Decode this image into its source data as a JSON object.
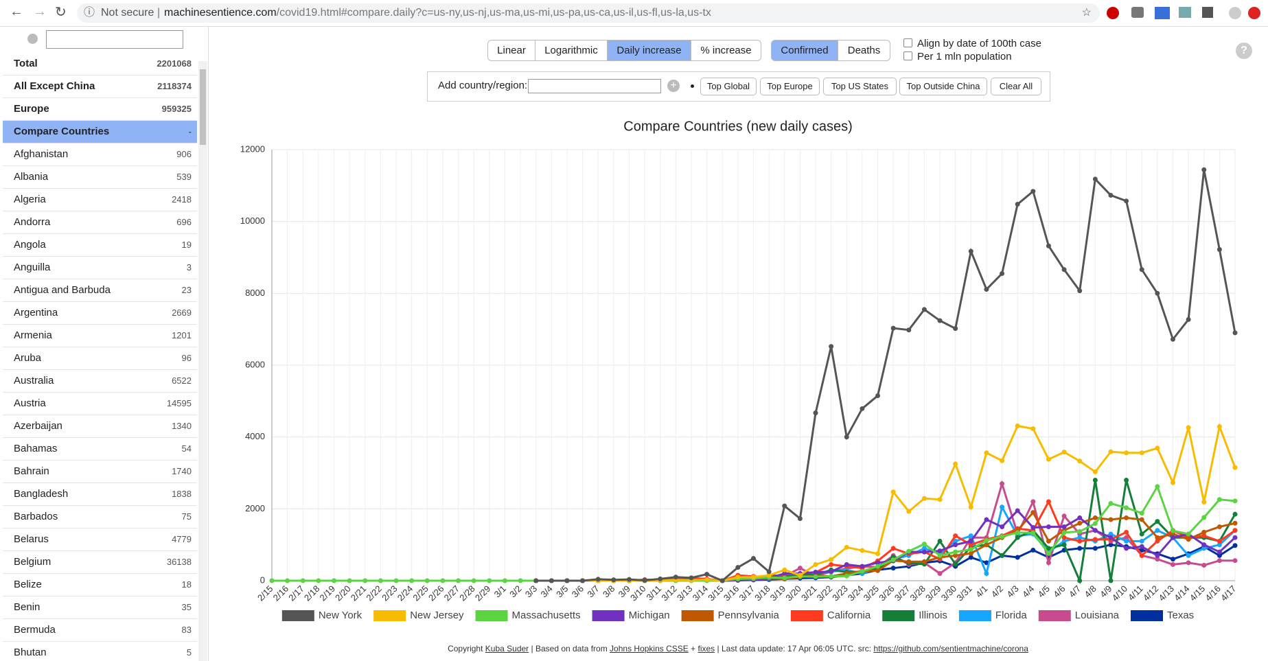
{
  "browser": {
    "security": "Not secure",
    "url_host": "machinesentience.com",
    "url_path": "/covid19.html#compare.daily?c=us-ny,us-nj,us-ma,us-mi,us-pa,us-ca,us-il,us-fl,us-la,us-tx"
  },
  "sidebar": {
    "selected": 3,
    "items": [
      {
        "name": "Total",
        "count": 2201068
      },
      {
        "name": "All Except China",
        "count": 2118374
      },
      {
        "name": "Europe",
        "count": 959325
      },
      {
        "name": "Compare Countries",
        "count": "-"
      },
      {
        "name": "Afghanistan",
        "count": 906
      },
      {
        "name": "Albania",
        "count": 539
      },
      {
        "name": "Algeria",
        "count": 2418
      },
      {
        "name": "Andorra",
        "count": 696
      },
      {
        "name": "Angola",
        "count": 19
      },
      {
        "name": "Anguilla",
        "count": 3
      },
      {
        "name": "Antigua and Barbuda",
        "count": 23
      },
      {
        "name": "Argentina",
        "count": 2669
      },
      {
        "name": "Armenia",
        "count": 1201
      },
      {
        "name": "Aruba",
        "count": 96
      },
      {
        "name": "Australia",
        "count": 6522
      },
      {
        "name": "Austria",
        "count": 14595
      },
      {
        "name": "Azerbaijan",
        "count": 1340
      },
      {
        "name": "Bahamas",
        "count": 54
      },
      {
        "name": "Bahrain",
        "count": 1740
      },
      {
        "name": "Bangladesh",
        "count": 1838
      },
      {
        "name": "Barbados",
        "count": 75
      },
      {
        "name": "Belarus",
        "count": 4779
      },
      {
        "name": "Belgium",
        "count": 36138
      },
      {
        "name": "Belize",
        "count": 18
      },
      {
        "name": "Benin",
        "count": 35
      },
      {
        "name": "Bermuda",
        "count": 83
      },
      {
        "name": "Bhutan",
        "count": 5
      }
    ]
  },
  "controls": {
    "scale_buttons": [
      "Linear",
      "Logarithmic",
      "Daily increase",
      "% increase"
    ],
    "scale_active": 2,
    "type_buttons": [
      "Confirmed",
      "Deaths"
    ],
    "type_active": 0,
    "checkboxes": [
      "Align by date of 100th case",
      "Per 1 mln population"
    ],
    "add_label": "Add country/region:",
    "quick_buttons": [
      "Top Global",
      "Top Europe",
      "Top US States",
      "Top Outside China",
      "Clear All"
    ]
  },
  "help": "?",
  "chart_data": {
    "type": "line",
    "title": "Compare Countries (new daily cases)",
    "categories": [
      "2/15",
      "2/16",
      "2/17",
      "2/18",
      "2/19",
      "2/20",
      "2/21",
      "2/22",
      "2/23",
      "2/24",
      "2/25",
      "2/26",
      "2/27",
      "2/28",
      "2/29",
      "3/1",
      "3/2",
      "3/3",
      "3/4",
      "3/5",
      "3/6",
      "3/7",
      "3/8",
      "3/9",
      "3/10",
      "3/11",
      "3/12",
      "3/13",
      "3/14",
      "3/15",
      "3/16",
      "3/17",
      "3/18",
      "3/19",
      "3/20",
      "3/21",
      "3/22",
      "3/23",
      "3/24",
      "3/25",
      "3/26",
      "3/27",
      "3/28",
      "3/29",
      "3/30",
      "3/31",
      "4/1",
      "4/2",
      "4/3",
      "4/4",
      "4/5",
      "4/6",
      "4/7",
      "4/8",
      "4/9",
      "4/10",
      "4/11",
      "4/12",
      "4/13",
      "4/14",
      "4/15",
      "4/16",
      "4/17"
    ],
    "ylim": [
      0,
      12000
    ],
    "yticks": [
      0,
      2000,
      4000,
      6000,
      8000,
      10000,
      12000
    ],
    "grid": true,
    "series": [
      {
        "name": "New York",
        "color": "#555555",
        "values": [
          null,
          null,
          null,
          null,
          null,
          null,
          null,
          null,
          null,
          null,
          null,
          null,
          null,
          null,
          null,
          null,
          null,
          0,
          0,
          0,
          0,
          40,
          25,
          35,
          10,
          50,
          100,
          80,
          180,
          0,
          370,
          620,
          250,
          2080,
          1730,
          4670,
          6520,
          4000,
          4790,
          5150,
          7030,
          6980,
          7550,
          7240,
          7020,
          9170,
          8110,
          8550,
          10480,
          10840,
          9320,
          8660,
          8070,
          11180,
          10730,
          10570,
          8660,
          8000,
          6720,
          7270,
          11440,
          9220,
          6900
        ]
      },
      {
        "name": "New Jersey",
        "color": "#f7bc00",
        "values": [
          null,
          null,
          null,
          null,
          null,
          null,
          null,
          null,
          null,
          null,
          null,
          null,
          null,
          null,
          null,
          null,
          null,
          0,
          0,
          0,
          0,
          0,
          1,
          2,
          5,
          8,
          20,
          15,
          30,
          0,
          100,
          100,
          150,
          300,
          150,
          450,
          590,
          930,
          840,
          750,
          2470,
          1930,
          2290,
          2260,
          3250,
          2050,
          3560,
          3340,
          4310,
          4230,
          3380,
          3580,
          3330,
          3030,
          3590,
          3560,
          3560,
          3690,
          2730,
          4260,
          2190,
          4290,
          3150
        ]
      },
      {
        "name": "Massachusetts",
        "color": "#5bd441",
        "values": [
          0,
          0,
          0,
          0,
          0,
          0,
          0,
          0,
          0,
          0,
          0,
          0,
          0,
          0,
          0,
          0,
          0,
          0,
          0,
          0,
          0,
          0,
          0,
          0,
          0,
          0,
          0,
          0,
          0,
          0,
          50,
          60,
          90,
          80,
          120,
          110,
          120,
          130,
          260,
          400,
          580,
          820,
          1020,
          700,
          800,
          870,
          1120,
          1230,
          1340,
          1330,
          760,
          1340,
          1370,
          1590,
          2150,
          2030,
          1880,
          2620,
          1390,
          1300,
          1760,
          2260,
          2220
        ]
      },
      {
        "name": "Michigan",
        "color": "#7030c0",
        "values": [
          null,
          null,
          null,
          null,
          null,
          null,
          null,
          null,
          null,
          null,
          null,
          null,
          null,
          null,
          null,
          null,
          null,
          0,
          0,
          0,
          0,
          0,
          0,
          0,
          0,
          2,
          10,
          20,
          20,
          0,
          20,
          25,
          70,
          200,
          200,
          240,
          250,
          450,
          400,
          500,
          550,
          800,
          800,
          830,
          1000,
          1100,
          1700,
          1500,
          1950,
          1480,
          1500,
          1500,
          1750,
          1400,
          1200,
          900,
          950,
          700,
          1200,
          1300,
          1000,
          800,
          1200
        ]
      },
      {
        "name": "Pennsylvania",
        "color": "#c05800",
        "values": [
          null,
          null,
          null,
          null,
          null,
          null,
          null,
          null,
          null,
          null,
          null,
          null,
          null,
          null,
          null,
          null,
          null,
          0,
          0,
          0,
          0,
          0,
          0,
          0,
          2,
          3,
          6,
          10,
          15,
          0,
          20,
          30,
          60,
          50,
          100,
          140,
          120,
          200,
          270,
          280,
          560,
          530,
          530,
          650,
          700,
          760,
          1000,
          1200,
          1400,
          1900,
          1100,
          1400,
          1600,
          1750,
          1700,
          1750,
          1700,
          1200,
          1300,
          1150,
          1350,
          1500,
          1600
        ]
      },
      {
        "name": "California",
        "color": "#ff3a1f",
        "values": [
          null,
          null,
          null,
          null,
          null,
          null,
          null,
          null,
          null,
          null,
          null,
          null,
          null,
          null,
          null,
          null,
          null,
          0,
          0,
          0,
          0,
          0,
          0,
          0,
          30,
          20,
          50,
          70,
          50,
          0,
          150,
          120,
          100,
          170,
          200,
          230,
          450,
          400,
          350,
          550,
          900,
          750,
          800,
          600,
          1250,
          1000,
          1150,
          1250,
          1450,
          1400,
          2200,
          1200,
          1100,
          1150,
          1150,
          1350,
          700,
          1100,
          1400,
          1200,
          1250,
          1100,
          1400
        ]
      },
      {
        "name": "Illinois",
        "color": "#157f3a",
        "values": [
          null,
          null,
          null,
          null,
          null,
          null,
          null,
          null,
          null,
          null,
          null,
          null,
          null,
          null,
          null,
          null,
          null,
          0,
          0,
          0,
          0,
          0,
          0,
          0,
          1,
          6,
          7,
          14,
          18,
          0,
          13,
          50,
          150,
          130,
          160,
          160,
          300,
          240,
          250,
          330,
          660,
          490,
          460,
          1100,
          460,
          940,
          1000,
          700,
          1200,
          1400,
          900,
          1000,
          0,
          2800,
          0,
          2800,
          1300,
          1650,
          1200,
          1200,
          1200,
          1100,
          1850
        ]
      },
      {
        "name": "Florida",
        "color": "#16a6ff",
        "values": [
          null,
          null,
          null,
          null,
          null,
          null,
          null,
          null,
          null,
          null,
          null,
          null,
          null,
          null,
          null,
          null,
          null,
          0,
          0,
          0,
          0,
          0,
          0,
          0,
          5,
          5,
          10,
          20,
          20,
          0,
          40,
          30,
          50,
          100,
          150,
          200,
          250,
          300,
          200,
          350,
          600,
          700,
          900,
          750,
          1100,
          1250,
          200,
          2050,
          1250,
          1300,
          800,
          1100,
          1200,
          1100,
          1300,
          1100,
          1100,
          1400,
          1200,
          700,
          900,
          1000,
          1400
        ]
      },
      {
        "name": "Louisiana",
        "color": "#c84b8f",
        "values": [
          null,
          null,
          null,
          null,
          null,
          null,
          null,
          null,
          null,
          null,
          null,
          null,
          null,
          null,
          null,
          null,
          null,
          0,
          0,
          0,
          0,
          0,
          0,
          0,
          0,
          6,
          20,
          16,
          40,
          0,
          50,
          60,
          80,
          120,
          350,
          130,
          250,
          340,
          400,
          380,
          700,
          450,
          500,
          200,
          500,
          1200,
          1200,
          2700,
          1300,
          2200,
          500,
          1800,
          1300,
          1400,
          1100,
          1200,
          700,
          600,
          450,
          500,
          430,
          560,
          560
        ]
      },
      {
        "name": "Texas",
        "color": "#0030a0",
        "values": [
          null,
          null,
          null,
          null,
          null,
          null,
          null,
          null,
          null,
          null,
          null,
          null,
          null,
          null,
          null,
          null,
          null,
          0,
          0,
          0,
          0,
          0,
          0,
          0,
          3,
          5,
          5,
          10,
          15,
          0,
          10,
          20,
          30,
          50,
          70,
          80,
          100,
          150,
          200,
          300,
          350,
          400,
          500,
          550,
          400,
          650,
          500,
          700,
          650,
          850,
          650,
          850,
          900,
          900,
          1000,
          950,
          850,
          750,
          600,
          750,
          950,
          700,
          980
        ]
      }
    ]
  },
  "footer": {
    "prefix": "Copyright",
    "author": "Kuba Suder",
    "source_prefix": "| Based on data from",
    "source": "Johns Hopkins CSSE",
    "plus": "+",
    "fixes": "fixes",
    "update": "| Last data update: 17 Apr 06:05 UTC. src:",
    "repo": "https://github.com/sentientmachine/corona"
  }
}
